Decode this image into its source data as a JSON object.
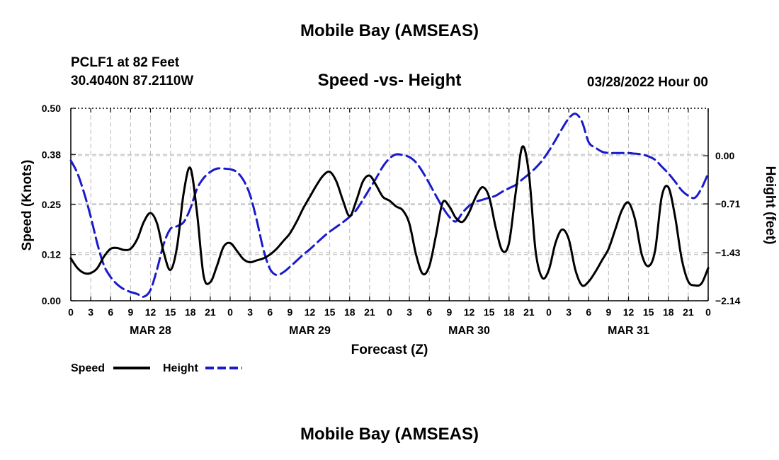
{
  "header": {
    "main_title": "Mobile Bay (AMSEAS)",
    "station_line1": "PCLF1 at 82 Feet",
    "station_line2": "30.4040N  87.2110W",
    "subtitle": "Speed -vs- Height",
    "datestamp": "03/28/2022 Hour 00",
    "bottom_title": "Mobile Bay (AMSEAS)"
  },
  "colors": {
    "speed": "#000000",
    "height": "#1a1acc",
    "grid": "#bbbbbb"
  },
  "chart_data": {
    "type": "line",
    "title": "Speed -vs- Height",
    "xlabel": "Forecast (Z)",
    "ylabel": "Speed (Knots)",
    "y2label": "Height (feet)",
    "x_unit": "forecast hours from 03/28/2022 00Z",
    "xlim": [
      0,
      96
    ],
    "ylim": [
      0,
      0.5
    ],
    "y2lim": [
      -2.14,
      0.7
    ],
    "x_tick_labels": [
      "0",
      "3",
      "6",
      "9",
      "12",
      "15",
      "18",
      "21",
      "0",
      "3",
      "6",
      "9",
      "12",
      "15",
      "18",
      "21",
      "0",
      "3",
      "6",
      "9",
      "12",
      "15",
      "18",
      "21",
      "0",
      "3",
      "6",
      "9",
      "12",
      "15",
      "18",
      "21",
      "0"
    ],
    "day_labels": [
      {
        "label": "MAR 28",
        "hour": 12
      },
      {
        "label": "MAR 29",
        "hour": 36
      },
      {
        "label": "MAR 30",
        "hour": 60
      },
      {
        "label": "MAR 31",
        "hour": 84
      }
    ],
    "y_ticks": [
      0.0,
      0.12,
      0.25,
      0.38,
      0.5
    ],
    "y_tick_labels": [
      "0.00",
      "0.12",
      "0.25",
      "0.38",
      "0.50"
    ],
    "y2_ticks": [
      -2.14,
      -1.43,
      -0.71,
      0.0
    ],
    "y2_tick_labels": [
      "−2.14",
      "−1.43",
      "−0.71",
      "0.00"
    ],
    "legend": {
      "position": "bottom-left",
      "entries": [
        "Speed",
        "Height"
      ]
    },
    "series": [
      {
        "name": "Speed",
        "axis": "left",
        "style": "solid",
        "x": [
          0,
          1,
          2,
          3,
          4,
          5,
          6,
          7,
          8,
          9,
          10,
          11,
          12,
          13,
          14,
          15,
          16,
          17,
          18,
          19,
          20,
          21,
          22,
          23,
          24,
          25,
          26,
          27,
          28,
          29,
          30,
          31,
          32,
          33,
          34,
          35,
          36,
          37,
          38,
          39,
          40,
          41,
          42,
          43,
          44,
          45,
          46,
          47,
          48,
          49,
          50,
          51,
          52,
          53,
          54,
          55,
          56,
          57,
          58,
          59,
          60,
          61,
          62,
          63,
          64,
          65,
          66,
          67,
          68,
          69,
          70,
          71,
          72,
          73,
          74,
          75,
          76,
          77,
          78,
          79,
          80,
          81,
          82,
          83,
          84,
          85,
          86,
          87,
          88,
          89,
          90,
          91,
          92,
          93,
          94,
          95,
          96
        ],
        "values": [
          0.11,
          0.085,
          0.072,
          0.072,
          0.085,
          0.115,
          0.135,
          0.137,
          0.132,
          0.135,
          0.16,
          0.205,
          0.228,
          0.2,
          0.125,
          0.08,
          0.14,
          0.28,
          0.345,
          0.23,
          0.065,
          0.048,
          0.09,
          0.14,
          0.15,
          0.13,
          0.108,
          0.1,
          0.105,
          0.11,
          0.12,
          0.135,
          0.155,
          0.175,
          0.205,
          0.24,
          0.27,
          0.3,
          0.325,
          0.335,
          0.31,
          0.26,
          0.22,
          0.26,
          0.31,
          0.325,
          0.3,
          0.27,
          0.26,
          0.245,
          0.235,
          0.2,
          0.12,
          0.07,
          0.09,
          0.17,
          0.255,
          0.245,
          0.215,
          0.205,
          0.23,
          0.27,
          0.295,
          0.27,
          0.19,
          0.13,
          0.15,
          0.28,
          0.4,
          0.33,
          0.13,
          0.06,
          0.08,
          0.15,
          0.185,
          0.16,
          0.08,
          0.04,
          0.05,
          0.075,
          0.105,
          0.135,
          0.185,
          0.235,
          0.255,
          0.21,
          0.12,
          0.09,
          0.13,
          0.27,
          0.295,
          0.22,
          0.11,
          0.05,
          0.04,
          0.045,
          0.085
        ]
      },
      {
        "name": "Height",
        "axis": "right",
        "style": "dashed",
        "x": [
          0,
          1,
          2,
          3,
          4,
          5,
          6,
          7,
          8,
          9,
          10,
          11,
          12,
          13,
          14,
          15,
          16,
          17,
          18,
          19,
          20,
          21,
          22,
          23,
          24,
          25,
          26,
          27,
          28,
          29,
          30,
          31,
          32,
          33,
          34,
          35,
          36,
          37,
          38,
          39,
          40,
          41,
          42,
          43,
          44,
          45,
          46,
          47,
          48,
          49,
          50,
          51,
          52,
          53,
          54,
          55,
          56,
          57,
          58,
          59,
          60,
          61,
          62,
          63,
          64,
          65,
          66,
          67,
          68,
          69,
          70,
          71,
          72,
          73,
          74,
          75,
          76,
          77,
          78,
          79,
          80,
          81,
          82,
          83,
          84,
          85,
          86,
          87,
          88,
          89,
          90,
          91,
          92,
          93,
          94,
          95,
          96
        ],
        "values": [
          -0.07,
          -0.26,
          -0.55,
          -0.9,
          -1.3,
          -1.62,
          -1.79,
          -1.9,
          -1.97,
          -2.01,
          -2.04,
          -2.08,
          -1.98,
          -1.67,
          -1.3,
          -1.08,
          -1.04,
          -0.98,
          -0.78,
          -0.49,
          -0.33,
          -0.24,
          -0.19,
          -0.19,
          -0.2,
          -0.24,
          -0.36,
          -0.58,
          -0.95,
          -1.38,
          -1.67,
          -1.76,
          -1.72,
          -1.64,
          -1.55,
          -1.46,
          -1.38,
          -1.29,
          -1.2,
          -1.12,
          -1.05,
          -0.98,
          -0.9,
          -0.8,
          -0.65,
          -0.49,
          -0.33,
          -0.16,
          -0.04,
          0.02,
          0.01,
          -0.02,
          -0.1,
          -0.24,
          -0.41,
          -0.59,
          -0.76,
          -0.9,
          -0.97,
          -0.84,
          -0.74,
          -0.68,
          -0.65,
          -0.62,
          -0.59,
          -0.53,
          -0.48,
          -0.43,
          -0.35,
          -0.27,
          -0.18,
          -0.07,
          0.07,
          0.23,
          0.4,
          0.55,
          0.62,
          0.5,
          0.2,
          0.12,
          0.06,
          0.04,
          0.04,
          0.04,
          0.04,
          0.03,
          0.02,
          -0.01,
          -0.06,
          -0.16,
          -0.26,
          -0.38,
          -0.51,
          -0.59,
          -0.62,
          -0.48,
          -0.26
        ]
      }
    ]
  }
}
